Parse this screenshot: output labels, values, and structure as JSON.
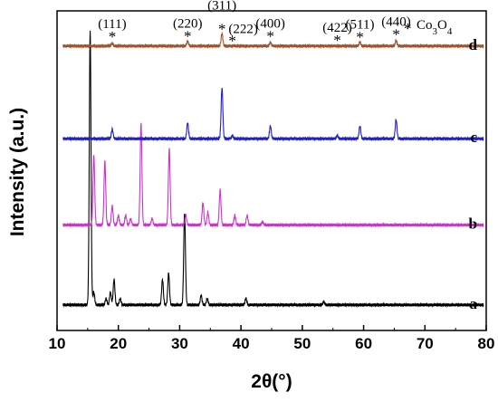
{
  "chart_data": {
    "type": "line",
    "title": "",
    "xlabel": "2θ(°)",
    "ylabel": "Intensity (a.u.)",
    "xlim": [
      10,
      80
    ],
    "x_ticks": [
      "10",
      "20",
      "30",
      "40",
      "50",
      "60",
      "70",
      "80"
    ],
    "legend": {
      "marker": "*",
      "text": "Co3O4",
      "position": "top-right"
    },
    "series": [
      {
        "name": "a",
        "color": "#000000",
        "baseline": 0.08,
        "peaks": [
          [
            15.4,
            0.86
          ],
          [
            16.0,
            0.04
          ],
          [
            18.0,
            0.02
          ],
          [
            18.7,
            0.04
          ],
          [
            19.3,
            0.08
          ],
          [
            20.3,
            0.02
          ],
          [
            27.2,
            0.08
          ],
          [
            28.2,
            0.1
          ],
          [
            30.8,
            0.29
          ],
          [
            33.5,
            0.03
          ],
          [
            34.5,
            0.02
          ],
          [
            40.8,
            0.02
          ],
          [
            53.5,
            0.01
          ]
        ]
      },
      {
        "name": "b",
        "color": "#cc33cc",
        "baseline": 0.33,
        "peaks": [
          [
            16.0,
            0.22
          ],
          [
            17.8,
            0.2
          ],
          [
            19.0,
            0.06
          ],
          [
            20.0,
            0.03
          ],
          [
            21.2,
            0.03
          ],
          [
            22.0,
            0.02
          ],
          [
            23.7,
            0.32
          ],
          [
            25.5,
            0.02
          ],
          [
            28.3,
            0.24
          ],
          [
            31.0,
            0.03
          ],
          [
            33.8,
            0.07
          ],
          [
            34.6,
            0.04
          ],
          [
            36.6,
            0.11
          ],
          [
            39.0,
            0.03
          ],
          [
            41.0,
            0.03
          ],
          [
            43.5,
            0.01
          ]
        ]
      },
      {
        "name": "c",
        "color": "#1f1fcc",
        "baseline": 0.6,
        "peaks": [
          [
            19.0,
            0.03
          ],
          [
            31.3,
            0.05
          ],
          [
            36.9,
            0.16
          ],
          [
            38.6,
            0.01
          ],
          [
            44.8,
            0.04
          ],
          [
            55.7,
            0.01
          ],
          [
            59.4,
            0.04
          ],
          [
            65.3,
            0.06
          ]
        ]
      },
      {
        "name": "d",
        "color": "#a0522d",
        "baseline": 0.89,
        "peaks": [
          [
            19.0,
            0.008
          ],
          [
            31.3,
            0.015
          ],
          [
            36.9,
            0.04
          ],
          [
            44.8,
            0.012
          ],
          [
            59.4,
            0.012
          ],
          [
            65.3,
            0.018
          ]
        ]
      }
    ],
    "peak_labels": [
      {
        "text": "(111)",
        "x": 19.0
      },
      {
        "text": "(220)",
        "x": 31.3
      },
      {
        "text": "(311)",
        "x": 36.9
      },
      {
        "text": "(222)",
        "x": 38.6
      },
      {
        "text": "(400)",
        "x": 44.8
      },
      {
        "text": "(422)",
        "x": 55.7
      },
      {
        "text": "(511)",
        "x": 59.4
      },
      {
        "text": "(440)",
        "x": 65.3
      }
    ]
  }
}
